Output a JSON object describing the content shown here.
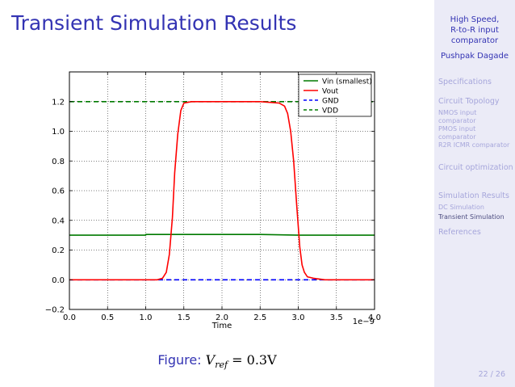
{
  "slide": {
    "title": "Transient Simulation Results",
    "caption_label": "Figure:",
    "caption_formula": "V",
    "caption_sub": "ref",
    "caption_rest": " = 0.3V",
    "page": "22 / 26"
  },
  "sidebar": {
    "title_lines": [
      "High Speed,",
      "R-to-R input",
      "comparator"
    ],
    "author": "Pushpak Dagade",
    "sections": [
      {
        "label": "Specifications"
      },
      {
        "label": "Circuit Topology"
      },
      {
        "label": "NMOS input comparator"
      },
      {
        "label": "PMOS input comparator"
      },
      {
        "label": "R2R ICMR comparator"
      },
      {
        "label": "Circuit optimization"
      },
      {
        "label": "Simulation Results"
      },
      {
        "label": "DC Simulation"
      },
      {
        "label": "Transient Simulation"
      },
      {
        "label": "References"
      }
    ]
  },
  "chart_data": {
    "type": "line",
    "xlabel": "Time",
    "ylabel": "",
    "x_offset_label": "1e−9",
    "xlim": [
      0.0,
      4.0
    ],
    "ylim": [
      -0.2,
      1.4
    ],
    "xticks": [
      "0.0",
      "0.5",
      "1.0",
      "1.5",
      "2.0",
      "2.5",
      "3.0",
      "3.5",
      "4.0"
    ],
    "yticks": [
      "−0.2",
      "0.0",
      "0.2",
      "0.4",
      "0.6",
      "0.8",
      "1.0",
      "1.2"
    ],
    "grid": true,
    "legend_position": "top-right",
    "series": [
      {
        "name": "Vin (smallest)",
        "color": "#007a00",
        "style": "solid",
        "x": [
          0.0,
          1.0,
          1.0,
          2.5,
          3.0,
          3.0,
          4.0
        ],
        "y": [
          0.3,
          0.3,
          0.305,
          0.305,
          0.3,
          0.3,
          0.3
        ]
      },
      {
        "name": "Vout",
        "color": "#ff0000",
        "style": "solid",
        "x": [
          0.0,
          1.0,
          1.15,
          1.22,
          1.27,
          1.31,
          1.35,
          1.38,
          1.42,
          1.46,
          1.5,
          1.6,
          2.0,
          2.5,
          2.75,
          2.82,
          2.86,
          2.9,
          2.94,
          2.98,
          3.02,
          3.05,
          3.08,
          3.12,
          3.2,
          3.35,
          4.0
        ],
        "y": [
          0.0,
          0.0,
          0.0,
          0.01,
          0.05,
          0.17,
          0.42,
          0.72,
          0.98,
          1.14,
          1.19,
          1.2,
          1.2,
          1.2,
          1.19,
          1.17,
          1.12,
          1.0,
          0.8,
          0.5,
          0.22,
          0.1,
          0.05,
          0.02,
          0.01,
          0.0,
          0.0
        ]
      },
      {
        "name": "GND",
        "color": "#0000ff",
        "style": "dashed",
        "x": [
          0.0,
          4.0
        ],
        "y": [
          0.0,
          0.0
        ]
      },
      {
        "name": "VDD",
        "color": "#007a00",
        "style": "dashed",
        "x": [
          0.0,
          4.0
        ],
        "y": [
          1.2,
          1.2
        ]
      }
    ]
  }
}
